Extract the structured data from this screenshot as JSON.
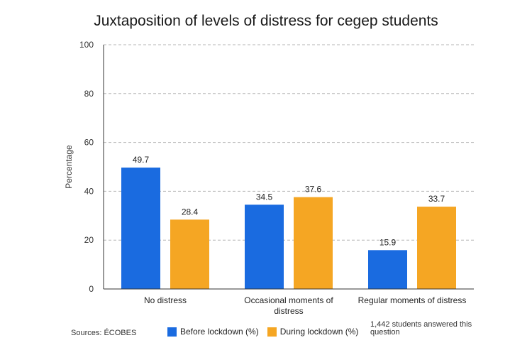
{
  "colors": {
    "before": "#1a6be0",
    "during": "#f5a623",
    "grid": "#b5b5b5",
    "axis": "#333333"
  },
  "source": "Sources: ÉCOBES",
  "note": "1,442 students  answered this question",
  "chart_data": {
    "type": "bar",
    "title": "Juxtaposition of levels of distress for cegep students",
    "xlabel": "",
    "ylabel": "Percentage",
    "ylim": [
      0,
      100
    ],
    "yticks": [
      0,
      20,
      40,
      60,
      80,
      100
    ],
    "grid": true,
    "legend_position": "bottom",
    "categories": [
      "No distress",
      "Occasional moments of distress",
      "Regular moments of distress"
    ],
    "category_lines": [
      [
        "No distress"
      ],
      [
        "Occasional moments of",
        "distress"
      ],
      [
        "Regular moments of distress"
      ]
    ],
    "series": [
      {
        "name": "Before lockdown (%)",
        "values": [
          49.7,
          34.5,
          15.9
        ]
      },
      {
        "name": "During lockdown (%)",
        "values": [
          28.4,
          37.6,
          33.7
        ]
      }
    ]
  }
}
